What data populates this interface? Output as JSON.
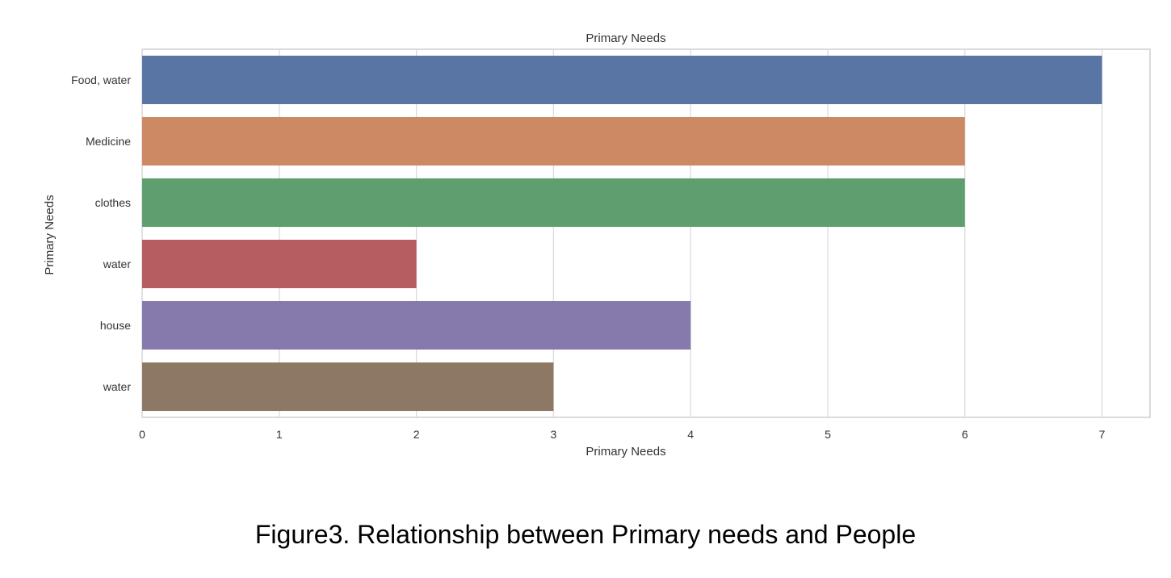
{
  "chart_data": {
    "type": "bar",
    "orientation": "horizontal",
    "title": "Primary Needs",
    "xlabel": "Primary Needs",
    "ylabel": "Primary Needs",
    "categories": [
      "Food, water",
      "Medicine",
      "clothes",
      "water",
      "house",
      "water"
    ],
    "values": [
      7,
      6,
      6,
      2,
      4,
      3
    ],
    "colors": [
      "#5975a4",
      "#cc8963",
      "#5f9e6e",
      "#b55d60",
      "#857aab",
      "#8d7866"
    ],
    "xlim": [
      0,
      7.35
    ],
    "xticks": [
      "0",
      "1",
      "2",
      "3",
      "4",
      "5",
      "6",
      "7"
    ],
    "grid": true
  },
  "caption": "Figure3. Relationship between Primary needs and People"
}
